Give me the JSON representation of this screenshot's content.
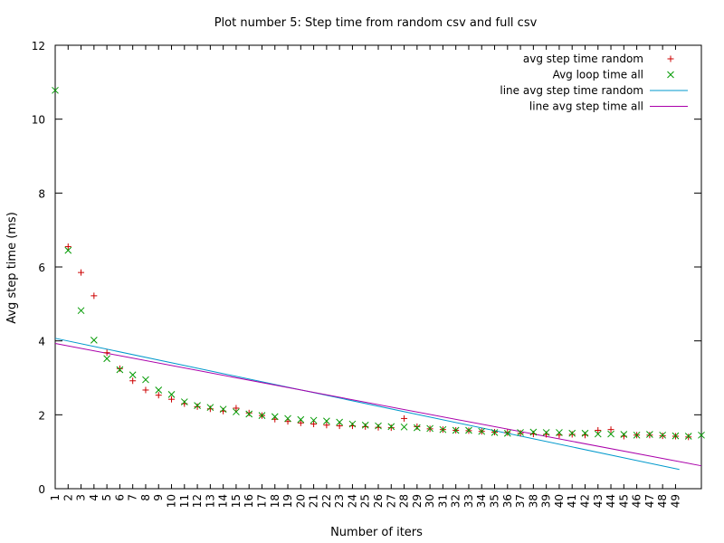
{
  "chart_data": {
    "type": "scatter",
    "title": "Plot number 5: Step time from random csv and full csv",
    "xlabel": "Number of iters",
    "ylabel": "Avg step time (ms)",
    "xlim": [
      1,
      51
    ],
    "ylim": [
      0,
      12
    ],
    "x_ticks": [
      "1",
      "2",
      "3",
      "4",
      "5",
      "6",
      "7",
      "8",
      "9",
      "10",
      "11",
      "12",
      "13",
      "14",
      "15",
      "16",
      "17",
      "18",
      "19",
      "20",
      "21",
      "22",
      "23",
      "24",
      "25",
      "26",
      "27",
      "28",
      "29",
      "30",
      "31",
      "32",
      "33",
      "34",
      "35",
      "36",
      "37",
      "38",
      "39",
      "40",
      "41",
      "42",
      "43",
      "44",
      "45",
      "46",
      "47",
      "48",
      "49"
    ],
    "y_ticks": [
      "0",
      "2",
      "4",
      "6",
      "8",
      "10",
      "12"
    ],
    "legend_position": "top-right",
    "series": [
      {
        "name": "avg step time random",
        "style": "plus",
        "color": "#cc0000",
        "x": [
          2,
          3,
          4,
          5,
          6,
          7,
          8,
          9,
          10,
          11,
          12,
          13,
          14,
          15,
          16,
          17,
          18,
          19,
          20,
          21,
          22,
          23,
          24,
          25,
          26,
          27,
          28,
          29,
          30,
          31,
          32,
          33,
          34,
          35,
          36,
          37,
          38,
          39,
          40,
          41,
          42,
          43,
          44,
          45,
          46,
          47,
          48,
          49,
          50
        ],
        "values": [
          6.55,
          5.85,
          5.22,
          3.68,
          3.25,
          2.92,
          2.67,
          2.53,
          2.42,
          2.3,
          2.22,
          2.16,
          2.1,
          2.18,
          2.05,
          1.98,
          1.88,
          1.82,
          1.78,
          1.75,
          1.72,
          1.7,
          1.7,
          1.68,
          1.66,
          1.65,
          1.9,
          1.68,
          1.62,
          1.6,
          1.58,
          1.57,
          1.55,
          1.53,
          1.52,
          1.5,
          1.48,
          1.47,
          1.45,
          1.47,
          1.45,
          1.58,
          1.6,
          1.42,
          1.45,
          1.45,
          1.43,
          1.42,
          1.4
        ]
      },
      {
        "name": "Avg loop time all",
        "style": "cross",
        "color": "#009900",
        "x": [
          1,
          2,
          3,
          4,
          5,
          6,
          7,
          8,
          9,
          10,
          11,
          12,
          13,
          14,
          15,
          16,
          17,
          18,
          19,
          20,
          21,
          22,
          23,
          24,
          25,
          26,
          27,
          28,
          29,
          30,
          31,
          32,
          33,
          34,
          35,
          36,
          37,
          38,
          39,
          40,
          41,
          42,
          43,
          44,
          45,
          46,
          47,
          48,
          49,
          50,
          51
        ],
        "values": [
          10.78,
          6.45,
          4.82,
          4.02,
          3.52,
          3.22,
          3.08,
          2.95,
          2.67,
          2.55,
          2.35,
          2.25,
          2.2,
          2.15,
          2.08,
          2.02,
          1.98,
          1.95,
          1.9,
          1.87,
          1.85,
          1.83,
          1.8,
          1.75,
          1.72,
          1.7,
          1.68,
          1.67,
          1.65,
          1.63,
          1.6,
          1.58,
          1.58,
          1.55,
          1.52,
          1.5,
          1.52,
          1.53,
          1.52,
          1.52,
          1.5,
          1.5,
          1.48,
          1.48,
          1.47,
          1.45,
          1.47,
          1.45,
          1.43,
          1.42,
          1.45
        ]
      },
      {
        "name": "line avg step time random",
        "style": "line",
        "color": "#0099cc",
        "x": [
          1,
          49.3
        ],
        "values": [
          4.07,
          0.52
        ]
      },
      {
        "name": "line avg step time all",
        "style": "line",
        "color": "#aa00aa",
        "x": [
          1,
          51
        ],
        "values": [
          3.93,
          0.62
        ]
      }
    ]
  }
}
